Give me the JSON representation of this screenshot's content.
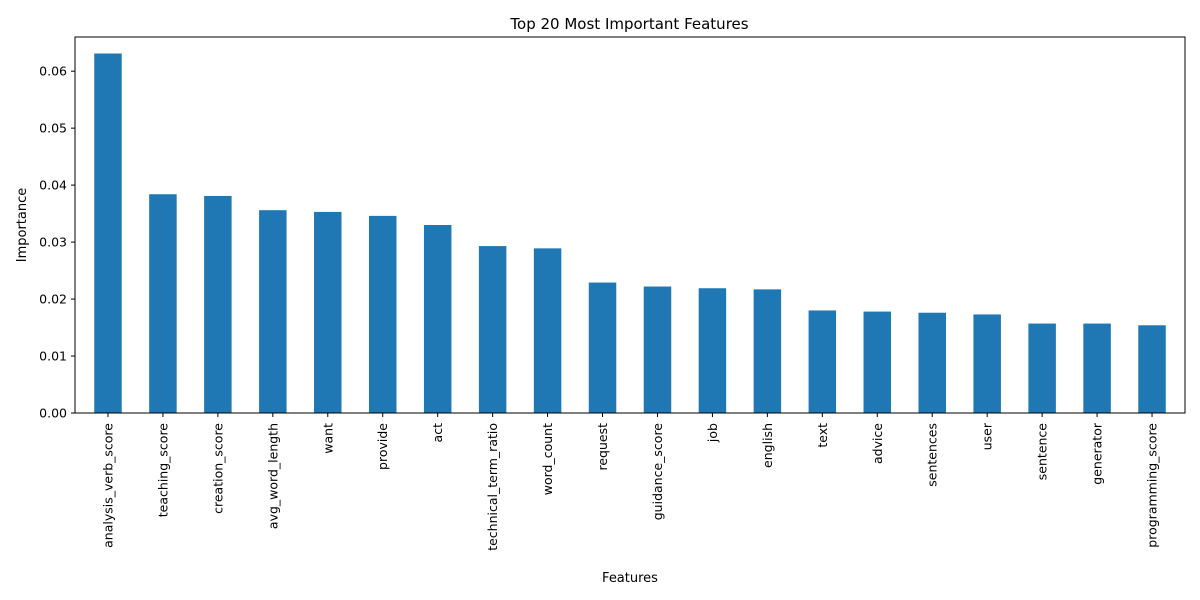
{
  "chart_data": {
    "type": "bar",
    "title": "Top 20 Most Important Features",
    "xlabel": "Features",
    "ylabel": "Importance",
    "ylim": [
      0,
      0.066
    ],
    "yticks": [
      "0.00",
      "0.01",
      "0.02",
      "0.03",
      "0.04",
      "0.05",
      "0.06"
    ],
    "grid": false,
    "bar_color": "#1f77b4",
    "categories": [
      "analysis_verb_score",
      "teaching_score",
      "creation_score",
      "avg_word_length",
      "want",
      "provide",
      "act",
      "technical_term_ratio",
      "word_count",
      "request",
      "guidance_score",
      "job",
      "english",
      "text",
      "advice",
      "sentences",
      "user",
      "sentence",
      "generator",
      "programming_score"
    ],
    "values": [
      0.0631,
      0.0384,
      0.0381,
      0.0356,
      0.0353,
      0.0346,
      0.033,
      0.0293,
      0.0289,
      0.0229,
      0.0222,
      0.0219,
      0.0217,
      0.018,
      0.0178,
      0.0176,
      0.0173,
      0.0157,
      0.0157,
      0.0154
    ]
  }
}
